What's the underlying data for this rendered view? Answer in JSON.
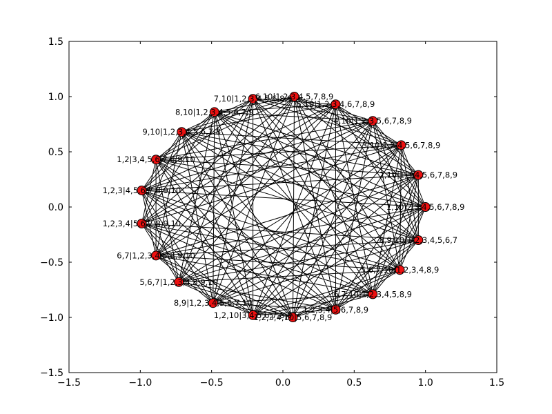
{
  "chart_data": {
    "type": "network",
    "xlim": [
      -1.5,
      1.5
    ],
    "ylim": [
      -1.5,
      1.5
    ],
    "xticks": [
      "−1.5",
      "−1.0",
      "−0.5",
      "0.0",
      "0.5",
      "1.0",
      "1.5"
    ],
    "yticks": [
      "−1.5",
      "−1.0",
      "−0.5",
      "0.0",
      "0.5",
      "1.0",
      "1.5"
    ],
    "xtick_values": [
      -1.5,
      -1.0,
      -0.5,
      0.0,
      0.5,
      1.0,
      1.5
    ],
    "ytick_values": [
      -1.5,
      -1.0,
      -0.5,
      0.0,
      0.5,
      1.0,
      1.5
    ],
    "node_color": "#ee1111",
    "edge_color": "#000000",
    "nodes": [
      {
        "label": "1,10|2,3,4,5,6,7,8,9",
        "x": 1.0,
        "y": 0.0
      },
      {
        "label": "8,9,10|1,2,3,4,5,6,7",
        "x": 0.95,
        "y": -0.3
      },
      {
        "label": "5,6,7,10|1,2,3,4,8,9",
        "x": 0.82,
        "y": -0.57
      },
      {
        "label": "6,7,10|1,2,3,4,5,8,9",
        "x": 0.63,
        "y": -0.79
      },
      {
        "label": "1,2,3,4|5,6,7,8,9",
        "x": 0.37,
        "y": -0.93
      },
      {
        "label": "1,2,3,4,10|5,6,7,8,9",
        "x": 0.07,
        "y": -1.0
      },
      {
        "label": "1,2,10|3,4,5,6,7,8,9",
        "x": -0.21,
        "y": -0.98
      },
      {
        "label": "8,9|1,2,3,4,5,6,7,10",
        "x": -0.49,
        "y": -0.87
      },
      {
        "label": "5,6,7|1,2,3,4,8,9,10",
        "x": -0.73,
        "y": -0.68
      },
      {
        "label": "6,7|1,2,3,4,5,8,9,10",
        "x": -0.89,
        "y": -0.44
      },
      {
        "label": "1,2,3,4|5,6,7,8,9,10",
        "x": -0.99,
        "y": -0.15
      },
      {
        "label": "1,2,3|4,5,6,7,8,9,10",
        "x": -0.99,
        "y": 0.15
      },
      {
        "label": "1,2|3,4,5,6,7,8,9,10",
        "x": -0.89,
        "y": 0.43
      },
      {
        "label": "9,10|1,2,3,4,5,6,7,8",
        "x": -0.71,
        "y": 0.68
      },
      {
        "label": "8,10|1,2,3,4,5,6,7,9",
        "x": -0.48,
        "y": 0.86
      },
      {
        "label": "7,10|1,2,3,4,5,6,8,9",
        "x": -0.21,
        "y": 0.98
      },
      {
        "label": "6,10|1,2,3,4,5,7,8,9",
        "x": 0.08,
        "y": 1.0
      },
      {
        "label": "5,10|1,2,3,4,6,7,8,9",
        "x": 0.37,
        "y": 0.93
      },
      {
        "label": "4,10|1,2,3,5,6,7,8,9",
        "x": 0.63,
        "y": 0.78
      },
      {
        "label": "3,10|1,2,4,5,6,7,8,9",
        "x": 0.83,
        "y": 0.56
      },
      {
        "label": "2,10|1,3,4,5,6,7,8,9",
        "x": 0.95,
        "y": 0.29
      }
    ]
  }
}
